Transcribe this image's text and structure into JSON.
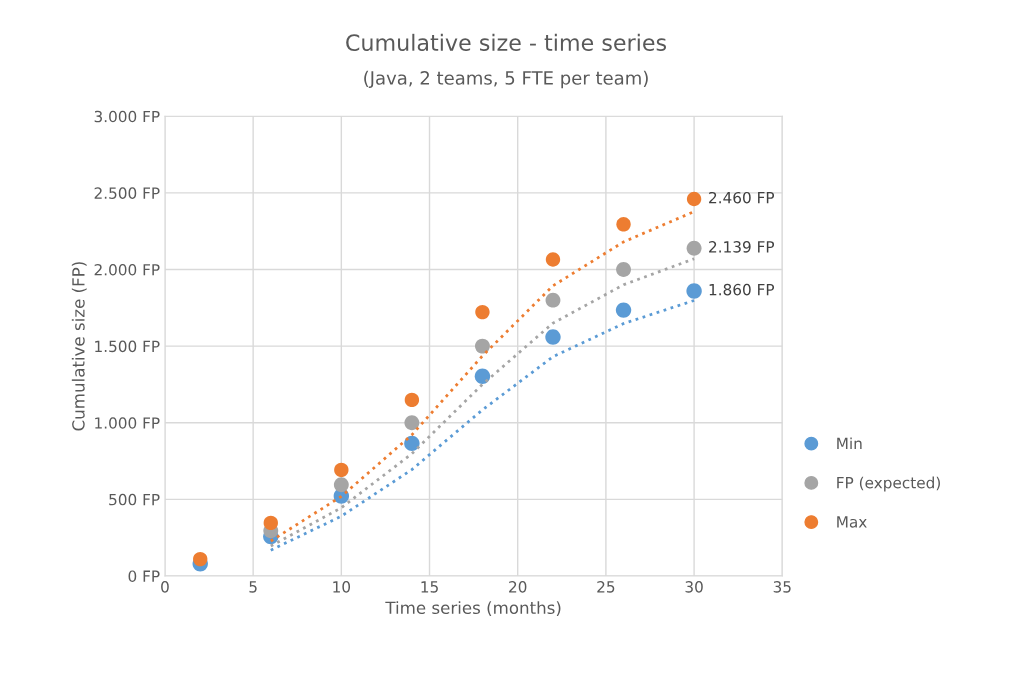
{
  "chart_data": {
    "type": "scatter",
    "title": "Cumulative size - time series",
    "subtitle": "(Java, 2 teams, 5 FTE per team)",
    "xlabel": "Time series (months)",
    "ylabel": "Cumulative size (FP)",
    "xlim": [
      0,
      35
    ],
    "xticks": [
      0,
      5,
      10,
      15,
      20,
      25,
      30,
      35
    ],
    "ylim": [
      0,
      3000
    ],
    "yticks": [
      {
        "value": 0,
        "label": "0 FP"
      },
      {
        "value": 500,
        "label": "500 FP"
      },
      {
        "value": 1000,
        "label": "1.000 FP"
      },
      {
        "value": 1500,
        "label": "1.500 FP"
      },
      {
        "value": 2000,
        "label": "2.000 FP"
      },
      {
        "value": 2500,
        "label": "2.500 FP"
      },
      {
        "value": 3000,
        "label": "3.000 FP"
      }
    ],
    "grid": true,
    "legend": "right",
    "marker": "circle",
    "x": [
      2,
      6,
      10,
      14,
      18,
      22,
      26,
      30
    ],
    "series": [
      {
        "name": "Min",
        "color": "#5b9bd5",
        "values": [
          80,
          257,
          522,
          865,
          1303,
          1559,
          1735,
          1860
        ],
        "value_labels": [
          null,
          null,
          null,
          null,
          null,
          null,
          null,
          "1.860 FP"
        ]
      },
      {
        "name": "FP (expected)",
        "color": "#a5a5a5",
        "values": [
          null,
          295,
          595,
          1000,
          1500,
          1800,
          2000,
          2139
        ],
        "value_labels": [
          null,
          null,
          null,
          null,
          null,
          null,
          null,
          "2.139 FP"
        ]
      },
      {
        "name": "Max",
        "color": "#ed7d31",
        "values": [
          110,
          346,
          692,
          1149,
          1722,
          2065,
          2295,
          2460
        ],
        "value_labels": [
          null,
          null,
          null,
          null,
          null,
          null,
          null,
          "2.460 FP"
        ]
      },
      {
        "type": "line",
        "line_style": "dotted",
        "marker": "none",
        "color": "#5b9bd5",
        "x": [
          6,
          10,
          14,
          18,
          22,
          26,
          30
        ],
        "values": [
          168,
          390,
          694,
          1084,
          1431,
          1647,
          1798
        ]
      },
      {
        "type": "line",
        "line_style": "dotted",
        "marker": "none",
        "color": "#a5a5a5",
        "x": [
          6,
          10,
          14,
          18,
          22,
          26,
          30
        ],
        "values": [
          195,
          445,
          798,
          1250,
          1650,
          1900,
          2070
        ]
      },
      {
        "type": "line",
        "line_style": "dotted",
        "marker": "none",
        "color": "#ed7d31",
        "x": [
          6,
          10,
          14,
          18,
          22,
          26,
          30
        ],
        "values": [
          228,
          519,
          921,
          1436,
          1894,
          2180,
          2378
        ]
      }
    ]
  }
}
